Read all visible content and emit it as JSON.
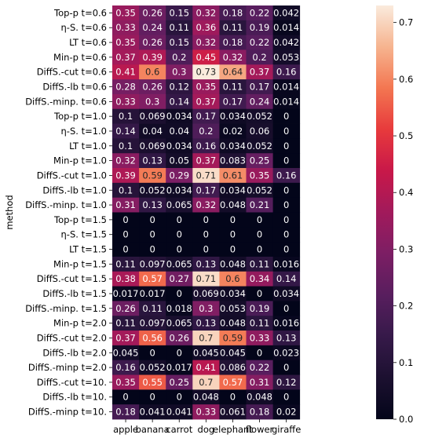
{
  "chart_data": {
    "type": "heatmap",
    "ylabel": "method",
    "xlabel": "",
    "columns": [
      "apple",
      "banana",
      "carrot",
      "dog",
      "elephant",
      "flower",
      "giraffe"
    ],
    "rows": [
      "Top-p t=0.6",
      "η-S. t=0.6",
      "LT t=0.6",
      "Min-p t=0.6",
      "DiffS.-cut t=0.6",
      "DiffS.-lb t=0.6",
      "DiffS.-minp. t=0.6",
      "Top-p t=1.0",
      "η-S. t=1.0",
      "LT t=1.0",
      "Min-p t=1.0",
      "DiffS.-cut t=1.0",
      "DiffS.-lb t=1.0",
      "DiffS.-minp. t=1.0",
      "Top-p t=1.5",
      "η-S. t=1.5",
      "LT t=1.5",
      "Min-p t=1.5",
      "DiffS.-cut t=1.5",
      "DiffS.-lb t=1.5",
      "DiffS.-minp. t=1.5",
      "Min-p t=2.0",
      "DiffS.-cut t=2.0",
      "DiffS.-lb t=2.0",
      "DiffS.-minp t=2.0",
      "DiffS.-cut t=10.",
      "DiffS.-lb t=10.",
      "DiffS.-minp t=10."
    ],
    "values": [
      [
        "0.35",
        "0.26",
        "0.15",
        "0.32",
        "0.18",
        "0.22",
        "0.042"
      ],
      [
        "0.33",
        "0.24",
        "0.11",
        "0.36",
        "0.11",
        "0.19",
        "0.014"
      ],
      [
        "0.35",
        "0.26",
        "0.15",
        "0.32",
        "0.18",
        "0.22",
        "0.042"
      ],
      [
        "0.37",
        "0.39",
        "0.2",
        "0.45",
        "0.32",
        "0.2",
        "0.053"
      ],
      [
        "0.41",
        "0.6",
        "0.3",
        "0.73",
        "0.64",
        "0.37",
        "0.16"
      ],
      [
        "0.28",
        "0.26",
        "0.12",
        "0.35",
        "0.11",
        "0.17",
        "0.014"
      ],
      [
        "0.33",
        "0.3",
        "0.14",
        "0.37",
        "0.17",
        "0.24",
        "0.014"
      ],
      [
        "0.1",
        "0.069",
        "0.034",
        "0.17",
        "0.034",
        "0.052",
        "0"
      ],
      [
        "0.14",
        "0.04",
        "0.04",
        "0.2",
        "0.02",
        "0.06",
        "0"
      ],
      [
        "0.1",
        "0.069",
        "0.034",
        "0.16",
        "0.034",
        "0.052",
        "0"
      ],
      [
        "0.32",
        "0.13",
        "0.05",
        "0.37",
        "0.083",
        "0.25",
        "0"
      ],
      [
        "0.39",
        "0.59",
        "0.29",
        "0.71",
        "0.61",
        "0.35",
        "0.16"
      ],
      [
        "0.1",
        "0.052",
        "0.034",
        "0.17",
        "0.034",
        "0.052",
        "0"
      ],
      [
        "0.31",
        "0.13",
        "0.065",
        "0.32",
        "0.048",
        "0.21",
        "0"
      ],
      [
        "0",
        "0",
        "0",
        "0",
        "0",
        "0",
        "0"
      ],
      [
        "0",
        "0",
        "0",
        "0",
        "0",
        "0",
        "0"
      ],
      [
        "0",
        "0",
        "0",
        "0",
        "0",
        "0",
        "0"
      ],
      [
        "0.11",
        "0.097",
        "0.065",
        "0.13",
        "0.048",
        "0.11",
        "0.016"
      ],
      [
        "0.38",
        "0.57",
        "0.27",
        "0.71",
        "0.6",
        "0.34",
        "0.14"
      ],
      [
        "0.017",
        "0.017",
        "0",
        "0.069",
        "0.034",
        "0",
        "0.034"
      ],
      [
        "0.26",
        "0.11",
        "0.018",
        "0.3",
        "0.053",
        "0.19",
        "0"
      ],
      [
        "0.11",
        "0.097",
        "0.065",
        "0.13",
        "0.048",
        "0.11",
        "0.016"
      ],
      [
        "0.37",
        "0.56",
        "0.26",
        "0.7",
        "0.59",
        "0.33",
        "0.13"
      ],
      [
        "0.045",
        "0",
        "0",
        "0.045",
        "0.045",
        "0",
        "0.023"
      ],
      [
        "0.16",
        "0.052",
        "0.017",
        "0.41",
        "0.086",
        "0.22",
        "0"
      ],
      [
        "0.35",
        "0.55",
        "0.25",
        "0.7",
        "0.57",
        "0.31",
        "0.12"
      ],
      [
        "0",
        "0",
        "0",
        "0.048",
        "0",
        "0.048",
        "0"
      ],
      [
        "0.18",
        "0.041",
        "0.041",
        "0.33",
        "0.061",
        "0.18",
        "0.02"
      ]
    ],
    "colorbar": {
      "min": 0,
      "max": 0.73,
      "ticks": [
        "0.0",
        "0.1",
        "0.2",
        "0.3",
        "0.4",
        "0.5",
        "0.6",
        "0.7"
      ],
      "colormap": "rocket"
    },
    "annotations_shown": true,
    "grid": false
  }
}
